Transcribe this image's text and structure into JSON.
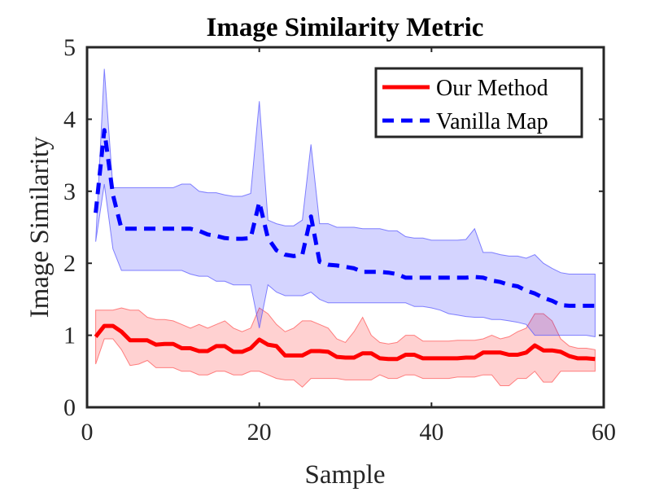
{
  "chart_data": {
    "type": "line",
    "title": "Image Similarity Metric",
    "xlabel": "Sample",
    "ylabel": "Image Similarity",
    "xlim": [
      0,
      60
    ],
    "ylim": [
      0,
      5
    ],
    "xticks": [
      "0",
      "20",
      "40",
      "60"
    ],
    "yticks": [
      "0",
      "1",
      "2",
      "3",
      "4",
      "5"
    ],
    "grid": false,
    "legend_position": "top-right",
    "x": [
      1,
      2,
      3,
      4,
      5,
      6,
      7,
      8,
      9,
      10,
      11,
      12,
      13,
      14,
      15,
      16,
      17,
      18,
      19,
      20,
      21,
      22,
      23,
      24,
      25,
      26,
      27,
      28,
      29,
      30,
      31,
      32,
      33,
      34,
      35,
      36,
      37,
      38,
      39,
      40,
      41,
      42,
      43,
      44,
      45,
      46,
      47,
      48,
      49,
      50,
      51,
      52,
      53,
      54,
      55,
      56,
      57,
      58,
      59
    ],
    "series": [
      {
        "name": "Our Method",
        "color": "#ff0000",
        "style": "solid",
        "values": [
          0.98,
          1.13,
          1.13,
          1.05,
          0.93,
          0.93,
          0.93,
          0.87,
          0.88,
          0.88,
          0.82,
          0.82,
          0.78,
          0.78,
          0.85,
          0.85,
          0.77,
          0.77,
          0.82,
          0.94,
          0.87,
          0.85,
          0.72,
          0.72,
          0.72,
          0.78,
          0.78,
          0.77,
          0.7,
          0.69,
          0.69,
          0.75,
          0.75,
          0.68,
          0.67,
          0.67,
          0.73,
          0.73,
          0.68,
          0.68,
          0.68,
          0.68,
          0.68,
          0.69,
          0.69,
          0.76,
          0.76,
          0.76,
          0.73,
          0.73,
          0.76,
          0.86,
          0.79,
          0.79,
          0.77,
          0.71,
          0.68,
          0.68,
          0.67
        ],
        "band_upper": [
          1.35,
          1.35,
          1.35,
          1.38,
          1.35,
          1.35,
          1.25,
          1.22,
          1.22,
          1.2,
          1.15,
          1.1,
          1.15,
          1.1,
          1.15,
          1.2,
          1.1,
          1.05,
          1.1,
          1.38,
          1.3,
          1.15,
          1.05,
          1.1,
          1.2,
          1.2,
          1.15,
          1.1,
          0.95,
          0.9,
          1.05,
          1.25,
          1.0,
          0.9,
          0.88,
          0.9,
          1.0,
          1.0,
          0.92,
          0.92,
          0.92,
          0.92,
          0.93,
          0.93,
          0.93,
          0.95,
          1.0,
          0.95,
          0.98,
          1.05,
          1.1,
          1.3,
          1.3,
          1.2,
          0.95,
          0.85,
          0.82,
          0.82,
          0.8
        ],
        "band_lower": [
          0.6,
          0.95,
          0.95,
          0.8,
          0.58,
          0.6,
          0.65,
          0.55,
          0.55,
          0.55,
          0.5,
          0.5,
          0.45,
          0.45,
          0.5,
          0.5,
          0.45,
          0.45,
          0.5,
          0.5,
          0.45,
          0.4,
          0.38,
          0.38,
          0.28,
          0.4,
          0.4,
          0.4,
          0.4,
          0.38,
          0.38,
          0.38,
          0.38,
          0.45,
          0.4,
          0.4,
          0.45,
          0.45,
          0.4,
          0.4,
          0.4,
          0.4,
          0.42,
          0.42,
          0.42,
          0.45,
          0.45,
          0.3,
          0.3,
          0.4,
          0.4,
          0.5,
          0.35,
          0.35,
          0.5,
          0.5,
          0.5,
          0.5,
          0.5
        ]
      },
      {
        "name": "Vanilla Map",
        "color": "#0000ff",
        "style": "dashed",
        "values": [
          2.7,
          3.85,
          2.95,
          2.48,
          2.48,
          2.48,
          2.48,
          2.48,
          2.48,
          2.48,
          2.48,
          2.48,
          2.45,
          2.4,
          2.38,
          2.35,
          2.34,
          2.34,
          2.35,
          2.85,
          2.35,
          2.18,
          2.12,
          2.1,
          2.12,
          2.65,
          2.02,
          1.98,
          1.97,
          1.95,
          1.93,
          1.88,
          1.88,
          1.88,
          1.87,
          1.85,
          1.8,
          1.8,
          1.8,
          1.8,
          1.8,
          1.8,
          1.8,
          1.8,
          1.81,
          1.8,
          1.76,
          1.74,
          1.7,
          1.68,
          1.62,
          1.58,
          1.52,
          1.48,
          1.42,
          1.41,
          1.41,
          1.41,
          1.41
        ],
        "band_upper": [
          2.3,
          4.7,
          3.05,
          3.05,
          3.05,
          3.05,
          3.05,
          3.05,
          3.05,
          3.05,
          3.1,
          3.1,
          3.0,
          2.98,
          2.98,
          2.95,
          2.93,
          2.93,
          2.97,
          4.25,
          2.6,
          2.55,
          2.52,
          2.52,
          2.6,
          3.65,
          2.55,
          2.55,
          2.5,
          2.5,
          2.5,
          2.48,
          2.48,
          2.48,
          2.45,
          2.45,
          2.37,
          2.35,
          2.35,
          2.32,
          2.32,
          2.32,
          2.32,
          2.33,
          2.48,
          2.15,
          2.15,
          2.12,
          2.1,
          2.1,
          2.07,
          2.12,
          2.0,
          1.93,
          1.87,
          1.85,
          1.85,
          1.85,
          1.85
        ],
        "band_lower": [
          2.3,
          3.1,
          2.2,
          1.9,
          1.9,
          1.9,
          1.9,
          1.9,
          1.9,
          1.9,
          1.9,
          1.85,
          1.82,
          1.82,
          1.75,
          1.75,
          1.7,
          1.7,
          1.7,
          1.1,
          1.7,
          1.6,
          1.55,
          1.55,
          1.55,
          1.6,
          1.5,
          1.45,
          1.45,
          1.45,
          1.45,
          1.45,
          1.45,
          1.45,
          1.45,
          1.45,
          1.45,
          1.4,
          1.4,
          1.38,
          1.35,
          1.3,
          1.28,
          1.26,
          1.25,
          1.25,
          1.22,
          1.22,
          1.2,
          1.18,
          1.15,
          1.0,
          1.0,
          1.0,
          1.0,
          1.0,
          1.0,
          1.0,
          0.98
        ]
      }
    ]
  }
}
